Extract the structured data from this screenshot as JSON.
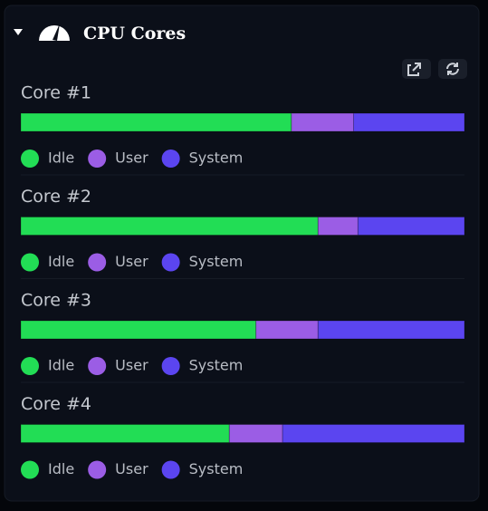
{
  "widget": {
    "title": "CPU Cores",
    "cores": [
      {
        "label": "Core #1",
        "series": [
          {
            "name": "Idle",
            "color": "#22dd55",
            "value": 61
          },
          {
            "name": "User",
            "color": "#9b5de5",
            "value": 14
          },
          {
            "name": "System",
            "color": "#5b45f0",
            "value": 25
          }
        ]
      },
      {
        "label": "Core #2",
        "series": [
          {
            "name": "Idle",
            "color": "#22dd55",
            "value": 67
          },
          {
            "name": "User",
            "color": "#9b5de5",
            "value": 9
          },
          {
            "name": "System",
            "color": "#5b45f0",
            "value": 24
          }
        ]
      },
      {
        "label": "Core #3",
        "series": [
          {
            "name": "Idle",
            "color": "#22dd55",
            "value": 53
          },
          {
            "name": "User",
            "color": "#9b5de5",
            "value": 14
          },
          {
            "name": "System",
            "color": "#5b45f0",
            "value": 33
          }
        ]
      },
      {
        "label": "Core #4",
        "series": [
          {
            "name": "Idle",
            "color": "#22dd55",
            "value": 47
          },
          {
            "name": "User",
            "color": "#9b5de5",
            "value": 12
          },
          {
            "name": "System",
            "color": "#5b45f0",
            "value": 41
          }
        ]
      }
    ]
  }
}
